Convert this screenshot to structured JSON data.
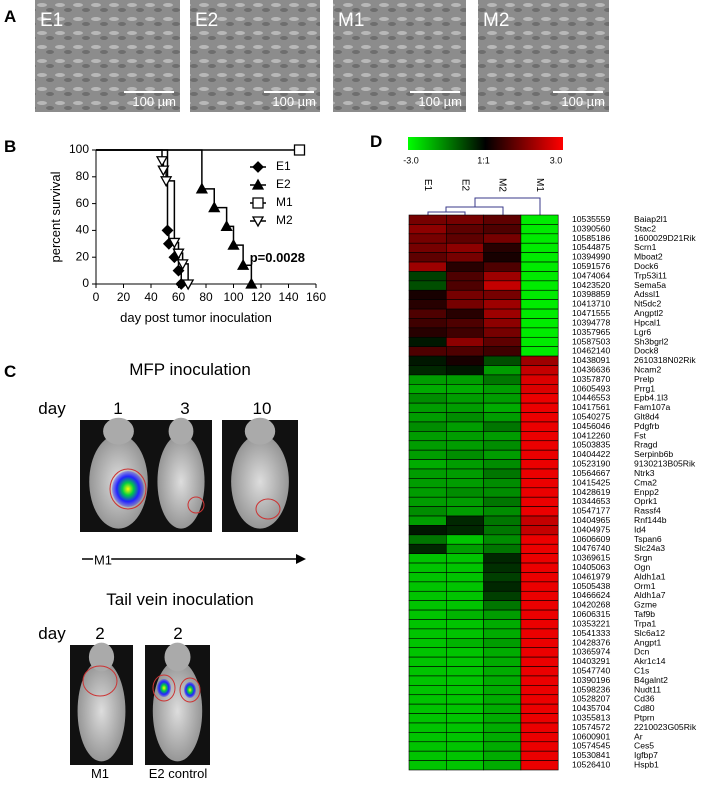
{
  "panel_labels": [
    "A",
    "B",
    "C",
    "D"
  ],
  "panel_a": {
    "images": [
      {
        "label": "E1",
        "scale": "100 µm"
      },
      {
        "label": "E2",
        "scale": "100 µm"
      },
      {
        "label": "M1",
        "scale": "100 µm"
      },
      {
        "label": "M2",
        "scale": "100 µm"
      }
    ]
  },
  "chart_data": {
    "type": "line",
    "step": true,
    "xlabel": "day post tumor inoculation",
    "ylabel": "percent survival",
    "annotation": "p=0.0028",
    "xlim": [
      0,
      160
    ],
    "xticks": [
      0,
      20,
      40,
      60,
      80,
      100,
      120,
      140,
      160
    ],
    "ylim": [
      0,
      100
    ],
    "yticks": [
      0,
      20,
      40,
      60,
      80,
      100
    ],
    "series": [
      {
        "name": "E1",
        "color": "#000000",
        "marker": "diamond",
        "x": [
          0,
          52,
          53,
          57,
          60,
          62
        ],
        "values": [
          100,
          40,
          30,
          20,
          10,
          0
        ]
      },
      {
        "name": "E2",
        "color": "#000000",
        "marker": "triangle-up",
        "x": [
          0,
          77,
          86,
          95,
          100,
          107,
          113
        ],
        "values": [
          100,
          71,
          57,
          43,
          29,
          14,
          0
        ]
      },
      {
        "name": "M1",
        "color": "#000000",
        "marker": "square-open",
        "x": [
          0,
          148
        ],
        "values": [
          100,
          100
        ]
      },
      {
        "name": "M2",
        "color": "#000000",
        "marker": "triangle-down-open",
        "x": [
          0,
          48,
          49,
          51,
          57,
          60,
          63,
          67
        ],
        "values": [
          100,
          92,
          85,
          77,
          31,
          23,
          15,
          0
        ]
      }
    ]
  },
  "panel_c": {
    "mfp_title": "MFP inoculation",
    "mfp_day": "day",
    "mfp_days": [
      "1",
      "3",
      "10"
    ],
    "mfp_group": "M1",
    "tail_title": "Tail vein inoculation",
    "tail_day": "day",
    "tail_days": [
      "2",
      "2"
    ],
    "tail_groups": [
      "M1",
      "E2 control"
    ]
  },
  "heatmap": {
    "colorbar": {
      "min": -3,
      "max": 3,
      "ticks": [
        {
          "value": -3,
          "label": "-3.0"
        },
        {
          "value": 0,
          "label": "1:1"
        },
        {
          "value": 3,
          "label": "3.0"
        }
      ]
    },
    "columns": [
      "E1",
      "E2",
      "M2",
      "M1"
    ],
    "rows": [
      {
        "id": "10535559",
        "gene": "Baiap2l1",
        "values": [
          1.5,
          1.5,
          1.2,
          -3
        ]
      },
      {
        "id": "10390560",
        "gene": "Stac2",
        "values": [
          1.8,
          1.2,
          1,
          -3
        ]
      },
      {
        "id": "10585186",
        "gene": "1600029D21Rik",
        "values": [
          1.5,
          1.2,
          1.5,
          -3
        ]
      },
      {
        "id": "10544875",
        "gene": "Scrn1",
        "values": [
          1.5,
          1.8,
          0.5,
          -3
        ]
      },
      {
        "id": "10394990",
        "gene": "Mboat2",
        "values": [
          1.2,
          1.5,
          0.3,
          -3
        ]
      },
      {
        "id": "10591576",
        "gene": "Dock6",
        "values": [
          2,
          0.5,
          1,
          -3
        ]
      },
      {
        "id": "10474064",
        "gene": "Trp53i11",
        "values": [
          -0.8,
          1,
          2,
          -3
        ]
      },
      {
        "id": "10423520",
        "gene": "Sema5a",
        "values": [
          -1,
          1,
          2.5,
          -3
        ]
      },
      {
        "id": "10398859",
        "gene": "Adssl1",
        "values": [
          0.3,
          1.5,
          1.5,
          -3
        ]
      },
      {
        "id": "10413710",
        "gene": "Nt5dc2",
        "values": [
          0.5,
          1.5,
          2,
          -3
        ]
      },
      {
        "id": "10471555",
        "gene": "Angptl2",
        "values": [
          1,
          0.5,
          2,
          -3
        ]
      },
      {
        "id": "10394778",
        "gene": "Hpcal1",
        "values": [
          0.8,
          1,
          1.8,
          -3
        ]
      },
      {
        "id": "10357965",
        "gene": "Lgr6",
        "values": [
          0.5,
          0.8,
          1.5,
          -3
        ]
      },
      {
        "id": "10587503",
        "gene": "Sh3bgrl2",
        "values": [
          -0.3,
          1.8,
          1.2,
          -3
        ]
      },
      {
        "id": "10462140",
        "gene": "Dock8",
        "values": [
          1,
          1,
          0.8,
          -3
        ]
      },
      {
        "id": "10438091",
        "gene": "2610318N02Rik",
        "values": [
          -0.3,
          0.3,
          -1,
          2
        ]
      },
      {
        "id": "10436636",
        "gene": "Ncam2",
        "values": [
          -0.5,
          -0.3,
          -2,
          2.5
        ]
      },
      {
        "id": "10357870",
        "gene": "Prelp",
        "values": [
          -2,
          -2,
          -1.5,
          2.8
        ]
      },
      {
        "id": "10605493",
        "gene": "Prrg1",
        "values": [
          -2.2,
          -2.2,
          -2,
          2.8
        ]
      },
      {
        "id": "10446553",
        "gene": "Epb4.1l3",
        "values": [
          -1.8,
          -2,
          -2,
          3
        ]
      },
      {
        "id": "10417561",
        "gene": "Fam107a",
        "values": [
          -2,
          -2,
          -2.2,
          3
        ]
      },
      {
        "id": "10540275",
        "gene": "Glt8d4",
        "values": [
          -2,
          -1.8,
          -2,
          3
        ]
      },
      {
        "id": "10456046",
        "gene": "Pdgfrb",
        "values": [
          -1.8,
          -2,
          -1.5,
          3
        ]
      },
      {
        "id": "10412260",
        "gene": "Fst",
        "values": [
          -2,
          -2,
          -2,
          3
        ]
      },
      {
        "id": "10503835",
        "gene": "Rragd",
        "values": [
          -2,
          -2,
          -1.8,
          3
        ]
      },
      {
        "id": "10404422",
        "gene": "Serpinb6b",
        "values": [
          -2,
          -1.8,
          -2,
          3
        ]
      },
      {
        "id": "10523190",
        "gene": "9130213B05Rik",
        "values": [
          -2.2,
          -2,
          -1.8,
          3
        ]
      },
      {
        "id": "10564667",
        "gene": "Ntrk3",
        "values": [
          -2,
          -2,
          -1.5,
          3
        ]
      },
      {
        "id": "10415425",
        "gene": "Cma2",
        "values": [
          -2,
          -2,
          -1.8,
          3
        ]
      },
      {
        "id": "10428619",
        "gene": "Enpp2",
        "values": [
          -2,
          -1.8,
          -1.8,
          3
        ]
      },
      {
        "id": "10344653",
        "gene": "Oprk1",
        "values": [
          -2,
          -2,
          -1.5,
          3
        ]
      },
      {
        "id": "10547177",
        "gene": "Rassf4",
        "values": [
          -1.8,
          -2,
          -1.8,
          3
        ]
      },
      {
        "id": "10404965",
        "gene": "Rnf144b",
        "values": [
          -2,
          -0.5,
          -1.5,
          2.5
        ]
      },
      {
        "id": "10404975",
        "gene": "Id4",
        "values": [
          -0.3,
          -0.5,
          -1.5,
          2.5
        ]
      },
      {
        "id": "10606609",
        "gene": "Tspan6",
        "values": [
          -1.5,
          -2.5,
          -1.8,
          3
        ]
      },
      {
        "id": "10476740",
        "gene": "Slc24a3",
        "values": [
          -0.5,
          -2,
          -1.5,
          3
        ]
      },
      {
        "id": "10369615",
        "gene": "Srgn",
        "values": [
          -2.5,
          -2.5,
          -0.5,
          3
        ]
      },
      {
        "id": "10405063",
        "gene": "Ogn",
        "values": [
          -2.5,
          -2.5,
          -0.6,
          3
        ]
      },
      {
        "id": "10461979",
        "gene": "Aldh1a1",
        "values": [
          -2.5,
          -2.5,
          -0.8,
          3
        ]
      },
      {
        "id": "10505438",
        "gene": "Orm1",
        "values": [
          -2.5,
          -2.5,
          -0.5,
          3
        ]
      },
      {
        "id": "10466624",
        "gene": "Aldh1a7",
        "values": [
          -2.5,
          -2.5,
          -0.8,
          3
        ]
      },
      {
        "id": "10420268",
        "gene": "Gzme",
        "values": [
          -2.5,
          -2.5,
          -1.5,
          3
        ]
      },
      {
        "id": "10606315",
        "gene": "Taf9b",
        "values": [
          -2.5,
          -2.3,
          -2,
          3
        ]
      },
      {
        "id": "10353221",
        "gene": "Trpa1",
        "values": [
          -2.5,
          -2.5,
          -2.2,
          3
        ]
      },
      {
        "id": "10541333",
        "gene": "Slc6a12",
        "values": [
          -2.5,
          -2.5,
          -2.2,
          3
        ]
      },
      {
        "id": "10428376",
        "gene": "Angpt1",
        "values": [
          -2.5,
          -2.3,
          -2,
          3
        ]
      },
      {
        "id": "10365974",
        "gene": "Dcn",
        "values": [
          -2.5,
          -2.5,
          -2.2,
          3
        ]
      },
      {
        "id": "10403291",
        "gene": "Akr1c14",
        "values": [
          -2.5,
          -2.5,
          -2.2,
          3
        ]
      },
      {
        "id": "10547740",
        "gene": "C1s",
        "values": [
          -2.5,
          -2.5,
          -2.2,
          3
        ]
      },
      {
        "id": "10390196",
        "gene": "B4galnt2",
        "values": [
          -2.5,
          -2.5,
          -2.2,
          3
        ]
      },
      {
        "id": "10598236",
        "gene": "Nudt11",
        "values": [
          -2.5,
          -2.5,
          -2.2,
          3
        ]
      },
      {
        "id": "10528207",
        "gene": "Cd36",
        "values": [
          -2.5,
          -2.5,
          -2.2,
          3
        ]
      },
      {
        "id": "10435704",
        "gene": "Cd80",
        "values": [
          -2.5,
          -2.5,
          -2.2,
          3
        ]
      },
      {
        "id": "10355813",
        "gene": "Ptprn",
        "values": [
          -2.5,
          -2.5,
          -2.2,
          3
        ]
      },
      {
        "id": "10574572",
        "gene": "2210023G05Rik",
        "values": [
          -2.5,
          -2.5,
          -2.2,
          3
        ]
      },
      {
        "id": "10600901",
        "gene": "Ar",
        "values": [
          -2.5,
          -2.5,
          -2.2,
          3
        ]
      },
      {
        "id": "10574545",
        "gene": "Ces5",
        "values": [
          -2.5,
          -2.5,
          -2.2,
          3
        ]
      },
      {
        "id": "10530841",
        "gene": "Igfbp7",
        "values": [
          -2.5,
          -2.5,
          -2.2,
          3
        ]
      },
      {
        "id": "10526410",
        "gene": "Hspb1",
        "values": [
          -2.5,
          -2.5,
          -2.2,
          3
        ]
      }
    ]
  }
}
